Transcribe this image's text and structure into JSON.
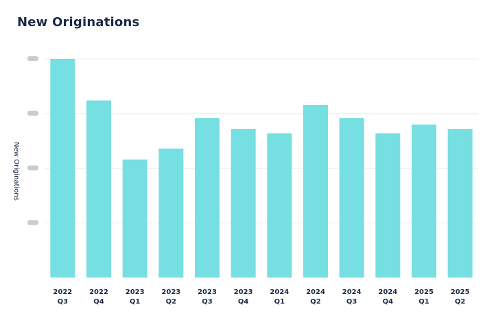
{
  "chart_data": {
    "type": "bar",
    "title": "New Originations",
    "ylabel": "New Originations",
    "xlabel": "",
    "bar_color": "#76dfe1",
    "grid_color": "#e9eef2",
    "ytick_labels_visible": false,
    "ylim": [
      0,
      100
    ],
    "yticks": [
      0,
      25,
      50,
      75,
      100
    ],
    "grid": true,
    "categories": [
      [
        "2022",
        "Q3"
      ],
      [
        "2022",
        "Q4"
      ],
      [
        "2023",
        "Q1"
      ],
      [
        "2023",
        "Q2"
      ],
      [
        "2023",
        "Q3"
      ],
      [
        "2023",
        "Q4"
      ],
      [
        "2024",
        "Q1"
      ],
      [
        "2024",
        "Q2"
      ],
      [
        "2024",
        "Q3"
      ],
      [
        "2024",
        "Q4"
      ],
      [
        "2025",
        "Q1"
      ],
      [
        "2025",
        "Q2"
      ]
    ],
    "values": [
      100,
      81,
      54,
      59,
      73,
      68,
      66,
      79,
      73,
      66,
      70,
      68
    ]
  }
}
